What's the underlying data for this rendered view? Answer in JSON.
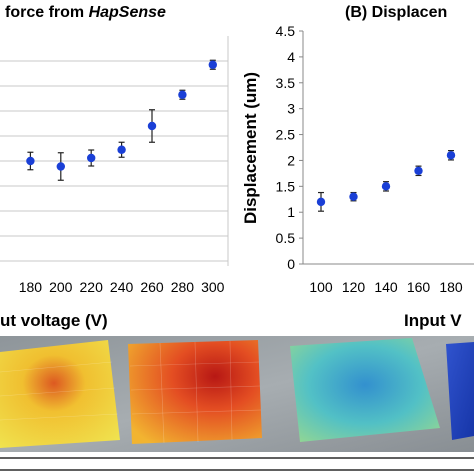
{
  "figure": {
    "bottom_label_left": "ut voltage (V)",
    "bottom_label_right": "Input V"
  },
  "chart_data": [
    {
      "type": "scatter",
      "title_prefix": "force from ",
      "title_italic": "HapSense",
      "xlabel": "",
      "ylabel": "",
      "x": [
        180,
        200,
        220,
        240,
        260,
        280,
        300
      ],
      "y": [
        3.0,
        2.78,
        3.12,
        3.45,
        4.4,
        5.65,
        6.85
      ],
      "err": [
        0.35,
        0.55,
        0.32,
        0.3,
        0.65,
        0.18,
        0.18
      ],
      "x_ticks": [
        "180",
        "200",
        "220",
        "240",
        "260",
        "280",
        "300"
      ],
      "ylim": [
        -1.2,
        8.0
      ],
      "grid": true,
      "marker_color": "#1a3fd6"
    },
    {
      "type": "scatter",
      "title": "(B) Displacen",
      "xlabel": "",
      "ylabel": "Displacement (um)",
      "x": [
        100,
        120,
        140,
        160,
        180
      ],
      "y": [
        1.2,
        1.3,
        1.5,
        1.8,
        2.1
      ],
      "err": [
        0.18,
        0.08,
        0.09,
        0.09,
        0.09
      ],
      "x_ticks": [
        "100",
        "120",
        "140",
        "160",
        "180"
      ],
      "y_ticks": [
        "0",
        "0.5",
        "1",
        "1.5",
        "2",
        "2.5",
        "3",
        "3.5",
        "4",
        "4.5"
      ],
      "ylim": [
        0,
        4.5
      ],
      "grid": false,
      "marker_color": "#1a3fd6"
    }
  ]
}
